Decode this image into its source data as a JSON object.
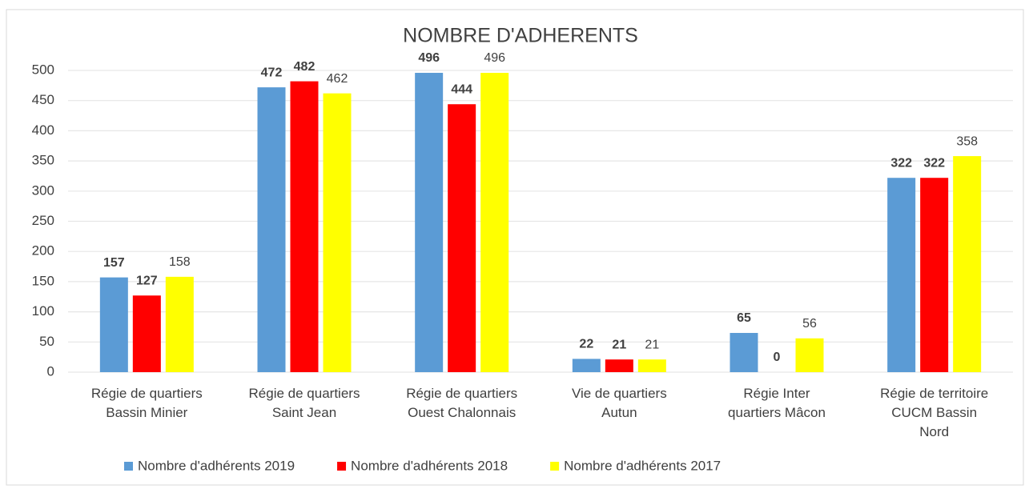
{
  "chart_data": {
    "type": "bar",
    "title": "NOMBRE D'ADHERENTS",
    "categories": [
      [
        "Régie de quartiers",
        "Bassin Minier"
      ],
      [
        "Régie de quartiers",
        "Saint Jean"
      ],
      [
        "Régie de quartiers",
        "Ouest Chalonnais"
      ],
      [
        "Vie de quartiers",
        "Autun"
      ],
      [
        "Régie Inter",
        "quartiers Mâcon"
      ],
      [
        "Régie de territoire",
        "CUCM Bassin",
        "Nord"
      ]
    ],
    "series": [
      {
        "name": "Nombre d'adhérents 2019",
        "color": "#5b9bd5",
        "values": [
          157,
          472,
          496,
          22,
          65,
          322
        ]
      },
      {
        "name": "Nombre d'adhérents 2018",
        "color": "#ff0000",
        "values": [
          127,
          482,
          444,
          21,
          0,
          322
        ]
      },
      {
        "name": "Nombre d'adhérents 2017",
        "color": "#ffff00",
        "values": [
          158,
          462,
          496,
          21,
          56,
          358
        ]
      }
    ],
    "ylim": [
      0,
      500
    ],
    "yticks": [
      0,
      50,
      100,
      150,
      200,
      250,
      300,
      350,
      400,
      450,
      500
    ],
    "grid": true,
    "legend": "bottom"
  }
}
